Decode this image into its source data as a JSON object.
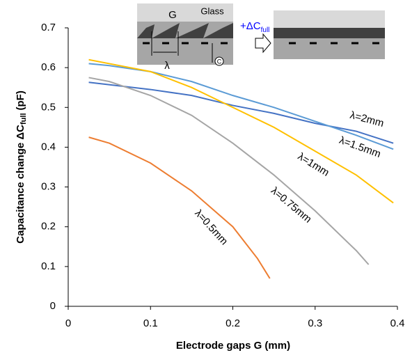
{
  "chart_data": {
    "type": "line",
    "xlabel": "Electrode gaps G (mm)",
    "ylabel": {
      "main": "Capacitance change ΔC",
      "sub": "full",
      "unit": "(pF)"
    },
    "xlim": [
      0,
      0.4
    ],
    "xticks": [
      0,
      0.1,
      0.2,
      0.3,
      0.4
    ],
    "ylim": [
      0,
      0.7
    ],
    "yticks": [
      0,
      0.1,
      0.2,
      0.3,
      0.4,
      0.5,
      0.6,
      0.7
    ],
    "grid": false,
    "series": [
      {
        "name": "λ=2mm",
        "color": "#4472c4",
        "x": [
          0.025,
          0.1,
          0.15,
          0.2,
          0.25,
          0.3,
          0.35,
          0.395
        ],
        "values": [
          0.563,
          0.545,
          0.53,
          0.505,
          0.485,
          0.46,
          0.44,
          0.41
        ]
      },
      {
        "name": "λ=1.5mm",
        "color": "#5b9bd5",
        "x": [
          0.025,
          0.05,
          0.1,
          0.15,
          0.2,
          0.25,
          0.3,
          0.35,
          0.395
        ],
        "values": [
          0.61,
          0.605,
          0.59,
          0.565,
          0.53,
          0.5,
          0.465,
          0.43,
          0.395
        ]
      },
      {
        "name": "λ=1mm",
        "color": "#ffc000",
        "x": [
          0.025,
          0.05,
          0.1,
          0.15,
          0.2,
          0.25,
          0.3,
          0.35,
          0.395
        ],
        "values": [
          0.62,
          0.61,
          0.59,
          0.55,
          0.5,
          0.45,
          0.39,
          0.33,
          0.26
        ]
      },
      {
        "name": "λ=0.75mm",
        "color": "#a5a5a5",
        "x": [
          0.025,
          0.05,
          0.1,
          0.15,
          0.2,
          0.25,
          0.3,
          0.35,
          0.365
        ],
        "values": [
          0.575,
          0.565,
          0.53,
          0.48,
          0.41,
          0.33,
          0.24,
          0.14,
          0.105
        ]
      },
      {
        "name": "λ=0.5mm",
        "color": "#ed7d31",
        "x": [
          0.025,
          0.05,
          0.1,
          0.15,
          0.2,
          0.23,
          0.245
        ],
        "values": [
          0.425,
          0.41,
          0.36,
          0.29,
          0.2,
          0.12,
          0.07
        ]
      }
    ]
  },
  "inset": {
    "glass": "Glass",
    "gap": "G",
    "wavelength": "λ",
    "delta": "+ΔC",
    "delta_sub": "full",
    "circle": "C"
  }
}
